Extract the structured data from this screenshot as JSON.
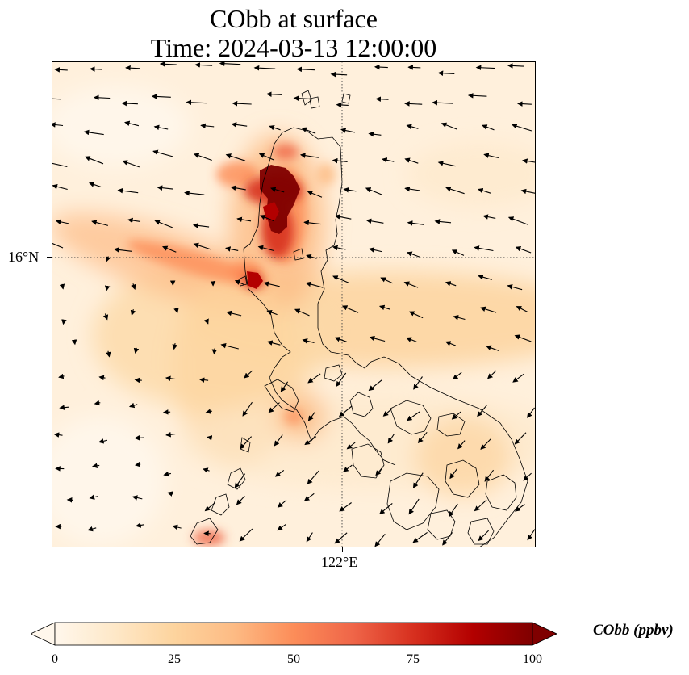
{
  "title": {
    "line1": "CObb at surface",
    "line2": "Time: 2024-03-13 12:00:00"
  },
  "axes": {
    "ytick_label": "16°N",
    "xtick_label": "122°E"
  },
  "colorbar": {
    "label": "CObb (ppbv)",
    "ticks": [
      "0",
      "25",
      "50",
      "75",
      "100"
    ],
    "min": 0,
    "max": 100,
    "extend": "both",
    "colormap": "OrRd",
    "colors": [
      "#fff7ec",
      "#fee8c8",
      "#fdd49e",
      "#fdbb84",
      "#fc8d59",
      "#ef6548",
      "#d7301f",
      "#b30000",
      "#7f0000"
    ]
  },
  "map": {
    "variable": "CObb",
    "units": "ppbv",
    "level": "surface",
    "graticule": {
      "lat": 16,
      "lon": 122
    },
    "coastline_color": "#000000",
    "wind_arrow_color": "#000000"
  }
}
